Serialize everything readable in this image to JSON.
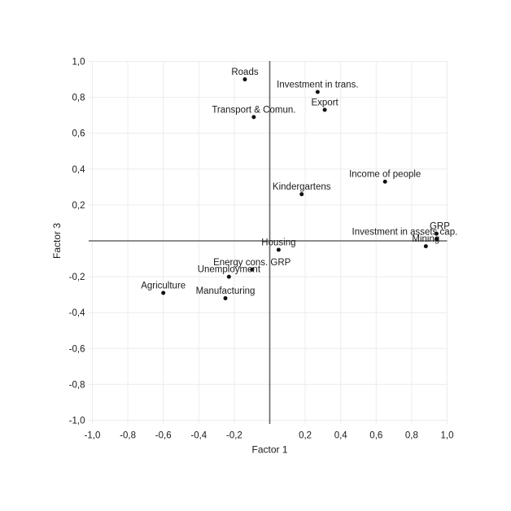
{
  "chart_data": {
    "type": "scatter",
    "title": "",
    "xlabel": "Factor 1",
    "ylabel": "Factor 3",
    "xlim": [
      -1.0,
      1.0
    ],
    "ylim": [
      -1.0,
      1.0
    ],
    "grid": true,
    "grid_step": 0.2,
    "legend": "none",
    "decimal_separator": ",",
    "x_tick_values": [
      -1.0,
      -0.8,
      -0.6,
      -0.4,
      -0.2,
      0.2,
      0.4,
      0.6,
      0.8,
      1.0
    ],
    "x_tick_labels": [
      "-1,0",
      "-0,8",
      "-0,6",
      "-0,4",
      "-0,2",
      "0,2",
      "0,4",
      "0,6",
      "0,8",
      "1,0"
    ],
    "y_tick_values": [
      1.0,
      0.8,
      0.6,
      0.4,
      0.2,
      -0.2,
      -0.4,
      -0.6,
      -0.8,
      -1.0
    ],
    "y_tick_labels": [
      "1,0",
      "0,8",
      "0,6",
      "0,4",
      "0,2",
      "-0,2",
      "-0,4",
      "-0,6",
      "-0,8",
      "-1,0"
    ],
    "points": [
      {
        "label": "Roads",
        "x": -0.14,
        "y": 0.9
      },
      {
        "label": "Investment in trans.",
        "x": 0.27,
        "y": 0.83
      },
      {
        "label": "Export",
        "x": 0.31,
        "y": 0.73
      },
      {
        "label": "Transport & Comun.",
        "x": -0.09,
        "y": 0.69
      },
      {
        "label": "Income of people",
        "x": 0.65,
        "y": 0.33
      },
      {
        "label": "Kindergartens",
        "x": 0.18,
        "y": 0.26
      },
      {
        "label": "GRP",
        "x": 0.94,
        "y": 0.04,
        "label_dx": 4
      },
      {
        "label": "Investment in assets cap.",
        "x": 0.94,
        "y": 0.01,
        "label_dx": -39
      },
      {
        "label": "Mining",
        "x": 0.88,
        "y": -0.03
      },
      {
        "label": "Housing",
        "x": 0.05,
        "y": -0.05
      },
      {
        "label": "Energy cons. GRP",
        "x": -0.1,
        "y": -0.16
      },
      {
        "label": "Unemployment",
        "x": -0.23,
        "y": -0.2
      },
      {
        "label": "Agriculture",
        "x": -0.6,
        "y": -0.29
      },
      {
        "label": "Manufacturing",
        "x": -0.25,
        "y": -0.32
      }
    ],
    "colors": {
      "background": "#ffffff",
      "point": "#111111",
      "grid": "#ececec",
      "zero_line": "#666666",
      "text": "#1a1a1a"
    }
  }
}
